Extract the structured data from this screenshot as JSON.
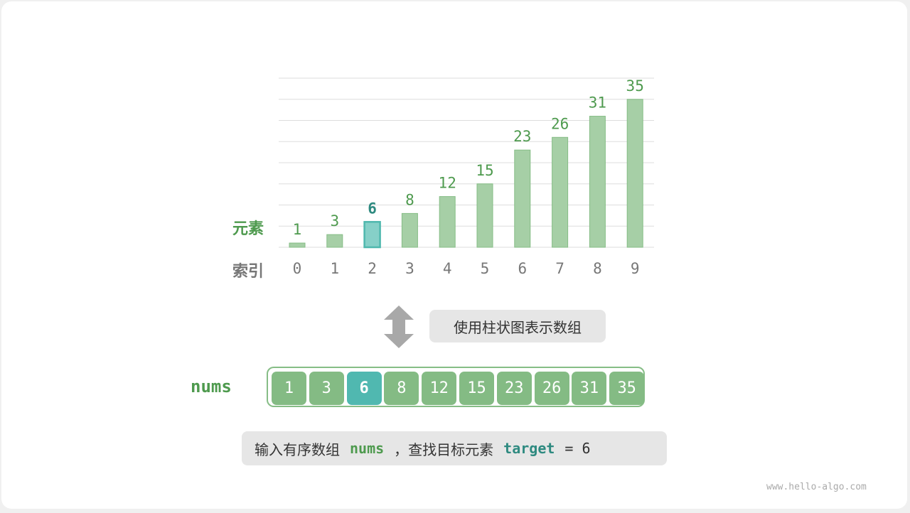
{
  "chart_data": {
    "type": "bar",
    "categories": [
      "0",
      "1",
      "2",
      "3",
      "4",
      "5",
      "6",
      "7",
      "8",
      "9"
    ],
    "values": [
      1,
      3,
      6,
      8,
      12,
      15,
      23,
      26,
      31,
      35
    ],
    "highlight_index": 2,
    "ylabel": "元素",
    "xlabel": "索引",
    "ylim": [
      0,
      40
    ],
    "grid": true,
    "colors": {
      "bar": "#a6cfa6",
      "bar_border": "#86bd86",
      "highlight": "#86d0c8",
      "highlight_border": "#4fb8ae",
      "value_text": "#4e9a4e",
      "highlight_text": "#2e8a80",
      "index_text": "#777777"
    }
  },
  "arrow_icon": "double-vertical-arrow-icon",
  "caption": "使用柱状图表示数组",
  "array": {
    "name": "nums",
    "values": [
      "1",
      "3",
      "6",
      "8",
      "12",
      "15",
      "23",
      "26",
      "31",
      "35"
    ],
    "highlight_index": 2
  },
  "bottom_note": {
    "prefix": "输入有序数组",
    "nums": "nums",
    "middle": "，查找目标元素",
    "target": "target",
    "equals": "= 6"
  },
  "watermark": "www.hello-algo.com"
}
